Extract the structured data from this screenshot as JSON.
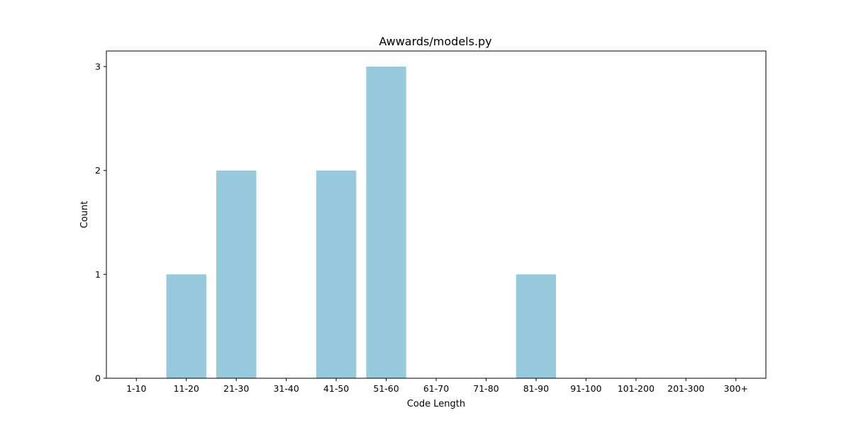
{
  "chart_data": {
    "type": "bar",
    "title": "Awwards/models.py",
    "xlabel": "Code Length",
    "ylabel": "Count",
    "categories": [
      "1-10",
      "11-20",
      "21-30",
      "31-40",
      "41-50",
      "51-60",
      "61-70",
      "71-80",
      "81-90",
      "91-100",
      "101-200",
      "201-300",
      "300+"
    ],
    "values": [
      0,
      1,
      2,
      0,
      2,
      3,
      0,
      0,
      1,
      0,
      0,
      0,
      0
    ],
    "ylim": [
      0,
      3.15
    ],
    "yticks": [
      0,
      1,
      2,
      3
    ],
    "grid": false,
    "bar_color": "#96c9dc"
  }
}
